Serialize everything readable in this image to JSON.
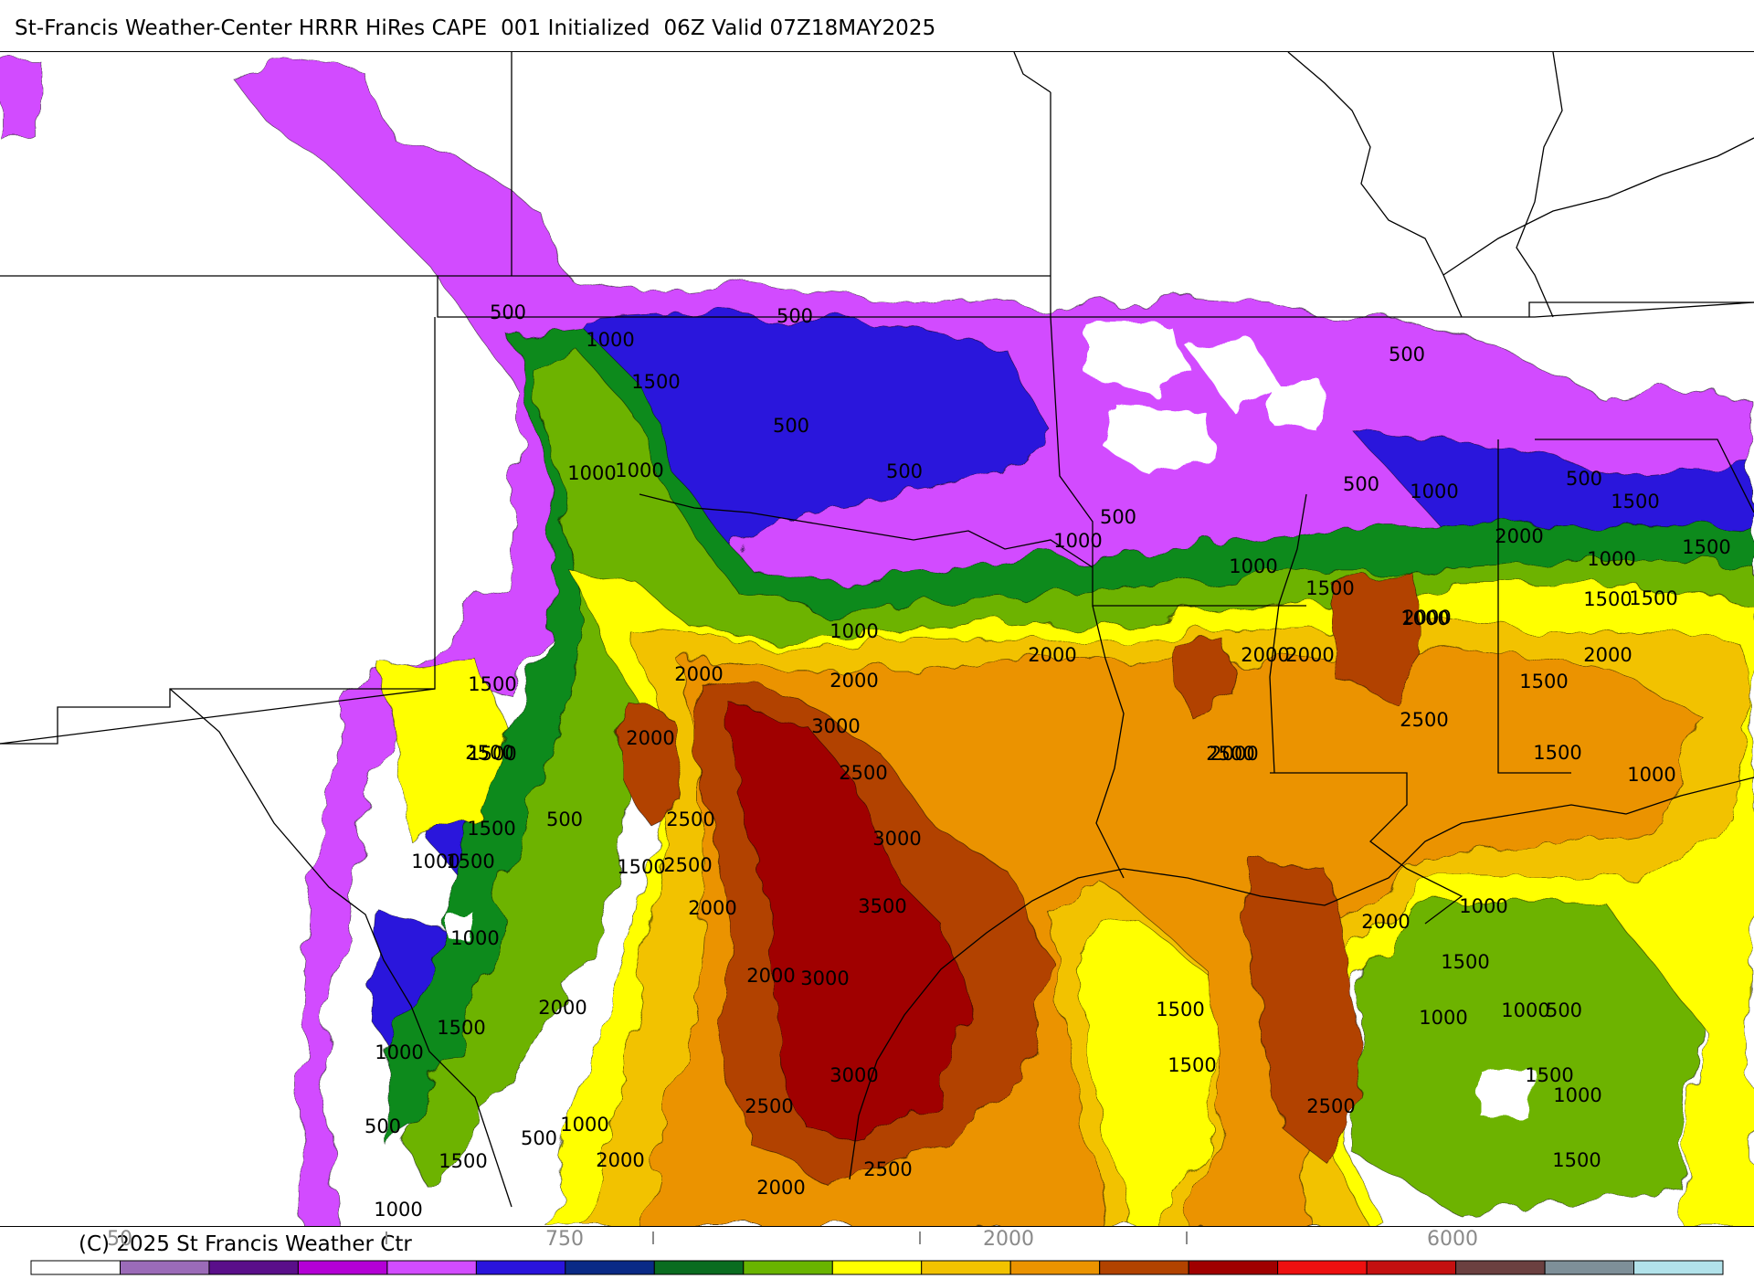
{
  "title": "St-Francis Weather-Center HRRR HiRes CAPE  001 Initialized  06Z Valid 07Z18MAY2025",
  "copyright": "(C) 2025 St Francis Weather Ctr",
  "colors": {
    "lt500": "#d24cff",
    "c500": "#2a14dc",
    "c1000": "#0c8a1c",
    "c1250": "#6db300",
    "c1500": "#ffff00",
    "c1750": "#f2c200",
    "c2000": "#eb9300",
    "c2500": "#b24300",
    "c3000": "#a00000",
    "borders": "#000000"
  },
  "colorbar": {
    "colors": [
      "#ffffff",
      "#9b6bb8",
      "#5a0f8a",
      "#b400d6",
      "#d24cff",
      "#2a14dc",
      "#0a2a86",
      "#0a6c20",
      "#69b400",
      "#ffff00",
      "#f2c200",
      "#eb9300",
      "#b24300",
      "#a00000",
      "#ee1010",
      "#c41010",
      "#6b4040",
      "#7e8f98",
      "#b2e2ea"
    ],
    "tick_labels": [
      "50",
      "750",
      "2000",
      "6000"
    ]
  },
  "contour_labels": [
    {
      "text": "500"
    },
    {
      "text": "1000"
    },
    {
      "text": "1500"
    },
    {
      "text": "500"
    },
    {
      "text": "500"
    },
    {
      "text": "1000"
    },
    {
      "text": "1000"
    },
    {
      "text": "500"
    },
    {
      "text": "500"
    },
    {
      "text": "1000"
    },
    {
      "text": "1500"
    },
    {
      "text": "500"
    },
    {
      "text": "500"
    },
    {
      "text": "1000"
    },
    {
      "text": "500"
    },
    {
      "text": "1000"
    },
    {
      "text": "1500"
    },
    {
      "text": "1000"
    },
    {
      "text": "1500"
    },
    {
      "text": "1000"
    },
    {
      "text": "1500"
    },
    {
      "text": "2000"
    },
    {
      "text": "2000"
    },
    {
      "text": "1000"
    },
    {
      "text": "2000"
    },
    {
      "text": "2000"
    },
    {
      "text": "2000"
    },
    {
      "text": "1500"
    },
    {
      "text": "1500"
    },
    {
      "text": "2000"
    },
    {
      "text": "2000"
    },
    {
      "text": "2000"
    },
    {
      "text": "1500"
    },
    {
      "text": "1000"
    },
    {
      "text": "3000"
    },
    {
      "text": "2500"
    },
    {
      "text": "2500"
    },
    {
      "text": "2500"
    },
    {
      "text": "3000"
    },
    {
      "text": "2000"
    },
    {
      "text": "2000"
    },
    {
      "text": "2500"
    },
    {
      "text": "1500"
    },
    {
      "text": "2500"
    },
    {
      "text": "1500"
    },
    {
      "text": "1500"
    },
    {
      "text": "2000"
    },
    {
      "text": "3500"
    },
    {
      "text": "1000"
    },
    {
      "text": "2000"
    },
    {
      "text": "1000"
    },
    {
      "text": "500"
    },
    {
      "text": "3000"
    },
    {
      "text": "1500"
    },
    {
      "text": "1500"
    },
    {
      "text": "1000"
    },
    {
      "text": "1500"
    },
    {
      "text": "1500"
    },
    {
      "text": "2500"
    },
    {
      "text": "1000"
    },
    {
      "text": "500"
    },
    {
      "text": "3000"
    },
    {
      "text": "2500"
    },
    {
      "text": "1000"
    },
    {
      "text": "500"
    },
    {
      "text": "1500"
    },
    {
      "text": "2000"
    },
    {
      "text": "1500"
    },
    {
      "text": "2500"
    },
    {
      "text": "2000"
    },
    {
      "text": "1500"
    },
    {
      "text": "500"
    },
    {
      "text": "1000"
    },
    {
      "text": "2000"
    },
    {
      "text": "1000"
    },
    {
      "text": "1500"
    },
    {
      "text": "2500"
    },
    {
      "text": "1000"
    },
    {
      "text": "1500"
    },
    {
      "text": "1000"
    },
    {
      "text": "2000"
    }
  ]
}
